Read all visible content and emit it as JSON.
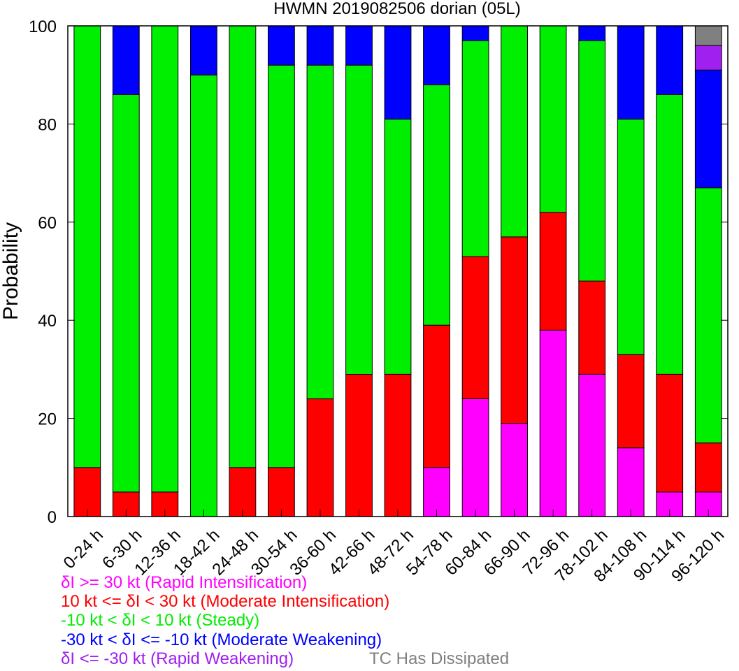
{
  "chart_data": {
    "type": "bar",
    "stacked": true,
    "title": "HWMN 2019082506 dorian (05L)",
    "ylabel": "Probability",
    "xlabel": "",
    "ylim": [
      0,
      100
    ],
    "yticks": [
      0,
      20,
      40,
      60,
      80,
      100
    ],
    "grid": false,
    "categories": [
      "0-24 h",
      "6-30 h",
      "12-36 h",
      "18-42 h",
      "24-48 h",
      "30-54 h",
      "36-60 h",
      "42-66 h",
      "48-72 h",
      "54-78 h",
      "60-84 h",
      "66-90 h",
      "72-96 h",
      "78-102 h",
      "84-108 h",
      "90-114 h",
      "96-120 h"
    ],
    "series": [
      {
        "name": "δI >= 30 kt (Rapid Intensification)",
        "color": "#ff00ff",
        "values": [
          0,
          0,
          0,
          0,
          0,
          0,
          0,
          0,
          0,
          10,
          24,
          19,
          38,
          29,
          14,
          5,
          5
        ]
      },
      {
        "name": "10 kt <= δI < 30 kt (Moderate Intensification)",
        "color": "#ff0000",
        "values": [
          10,
          5,
          5,
          0,
          10,
          10,
          24,
          29,
          29,
          29,
          29,
          38,
          24,
          19,
          19,
          24,
          10
        ]
      },
      {
        "name": "-10 kt < δI < 10 kt (Steady)",
        "color": "#00ee00",
        "values": [
          90,
          81,
          95,
          90,
          90,
          82,
          68,
          63,
          52,
          49,
          44,
          43,
          38,
          49,
          48,
          57,
          52
        ]
      },
      {
        "name": "-30 kt < δI <= -10 kt (Moderate Weakening)",
        "color": "#0000ff",
        "values": [
          0,
          14,
          0,
          10,
          0,
          8,
          8,
          8,
          19,
          12,
          3,
          0,
          0,
          3,
          19,
          14,
          24
        ]
      },
      {
        "name": "δI <= -30 kt (Rapid Weakening)",
        "color": "#a020f0",
        "values": [
          0,
          0,
          0,
          0,
          0,
          0,
          0,
          0,
          0,
          0,
          0,
          0,
          0,
          0,
          0,
          0,
          5
        ]
      },
      {
        "name": "TC Has Dissipated",
        "color": "#808080",
        "values": [
          0,
          0,
          0,
          0,
          0,
          0,
          0,
          0,
          0,
          0,
          0,
          0,
          0,
          0,
          0,
          0,
          4
        ]
      }
    ],
    "legend_position": "bottom-left"
  }
}
